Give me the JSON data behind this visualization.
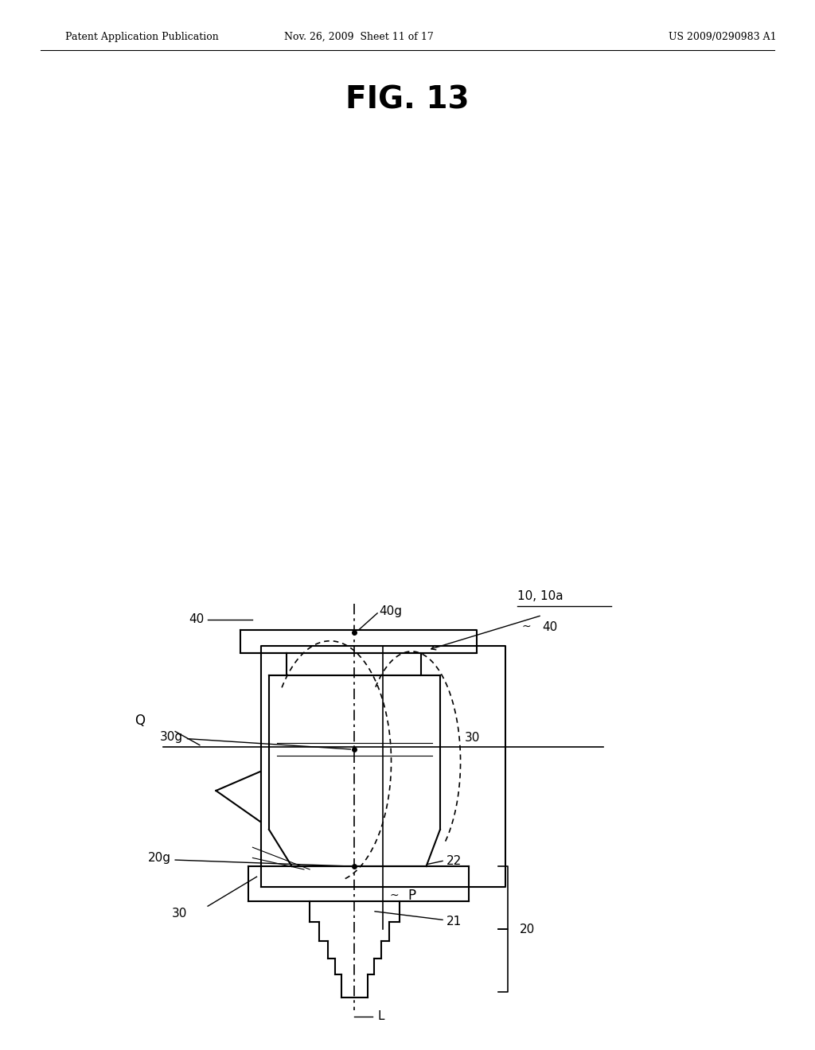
{
  "bg_color": "#ffffff",
  "line_color": "#000000",
  "header_left": "Patent Application Publication",
  "header_center": "Nov. 26, 2009  Sheet 11 of 17",
  "header_right": "US 2009/0290983 A1",
  "fig_title": "FIG. 13"
}
